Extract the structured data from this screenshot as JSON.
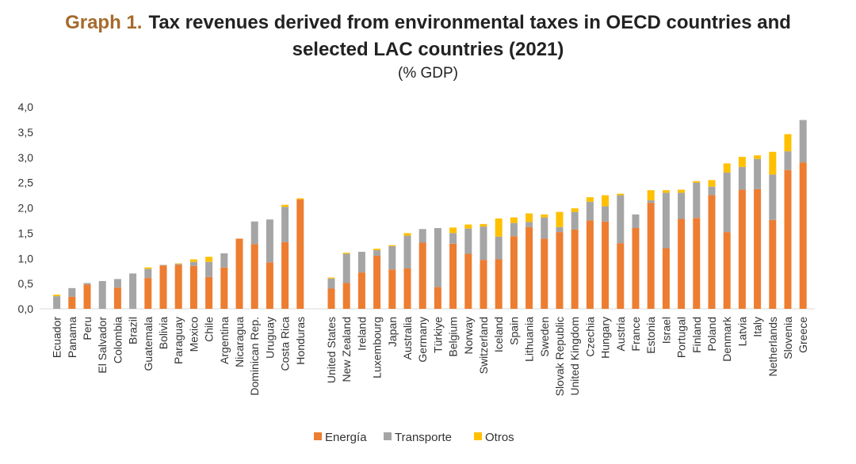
{
  "title": {
    "label": "Graph 1.",
    "line1": "Tax revenues derived from environmental taxes in OECD countries and",
    "line2": "selected LAC countries (2021)",
    "subtitle": "(% GDP)"
  },
  "chart_data": {
    "type": "bar",
    "stacked": true,
    "ylim": [
      0,
      4.0
    ],
    "yticks": [
      "0,0",
      "0,5",
      "1,0",
      "1,5",
      "2,0",
      "2,5",
      "3,0",
      "3,5",
      "4,0"
    ],
    "grid": false,
    "legend_position": "bottom",
    "colors": {
      "Energía": "#ed7d31",
      "Transporte": "#a5a5a5",
      "Otros": "#ffc000"
    },
    "groups": [
      {
        "categories": [
          "Ecuador",
          "Panama",
          "Peru",
          "El Salvador",
          "Colombia",
          "Brazil",
          "Guatemala",
          "Bolivia",
          "Paraguay",
          "Mexico",
          "Chile",
          "Argentina",
          "Nicaragua",
          "Dominican Rep.",
          "Uruguay",
          "Costa Rica",
          "Honduras"
        ],
        "series": [
          {
            "name": "Energía",
            "values": [
              0.0,
              0.24,
              0.48,
              0.0,
              0.42,
              0.0,
              0.61,
              0.86,
              0.87,
              0.85,
              0.63,
              0.82,
              1.39,
              1.28,
              0.92,
              1.32,
              2.17
            ]
          },
          {
            "name": "Transporte",
            "values": [
              0.25,
              0.17,
              0.03,
              0.55,
              0.17,
              0.7,
              0.18,
              0.01,
              0.02,
              0.08,
              0.3,
              0.28,
              0.0,
              0.45,
              0.85,
              0.7,
              0.0
            ]
          },
          {
            "name": "Otros",
            "values": [
              0.03,
              0.0,
              0.0,
              0.0,
              0.0,
              0.0,
              0.03,
              0.0,
              0.01,
              0.05,
              0.1,
              0.0,
              0.0,
              0.0,
              0.0,
              0.04,
              0.02
            ]
          }
        ]
      },
      {
        "categories": [
          "United States",
          "New Zealand",
          "Ireland",
          "Luxembourg",
          "Japan",
          "Australia",
          "Germany",
          "Türkiye",
          "Belgium",
          "Norway",
          "Switzerland",
          "Iceland",
          "Spain",
          "Lithuania",
          "Sweden",
          "Slovak Republic",
          "United Kingdom",
          "Czechia",
          "Hungary",
          "Austria",
          "France",
          "Estonia",
          "Israel",
          "Portugal",
          "Finland",
          "Poland",
          "Denmark",
          "Latvia",
          "Italy",
          "Netherlands",
          "Slovenia",
          "Greece"
        ],
        "series": [
          {
            "name": "Energía",
            "values": [
              0.4,
              0.51,
              0.72,
              1.05,
              0.78,
              0.8,
              1.31,
              0.43,
              1.29,
              1.09,
              0.97,
              0.98,
              1.44,
              1.62,
              1.39,
              1.52,
              1.57,
              1.75,
              1.73,
              1.3,
              1.6,
              2.1,
              1.2,
              1.78,
              1.8,
              2.25,
              1.52,
              2.36,
              2.37,
              1.76,
              2.75,
              2.9
            ]
          },
          {
            "name": "Transporte",
            "values": [
              0.2,
              0.58,
              0.41,
              0.11,
              0.46,
              0.65,
              0.27,
              1.17,
              0.21,
              0.5,
              0.66,
              0.45,
              0.26,
              0.1,
              0.42,
              0.1,
              0.35,
              0.37,
              0.3,
              0.95,
              0.27,
              0.05,
              1.1,
              0.52,
              0.7,
              0.17,
              1.18,
              0.45,
              0.6,
              0.9,
              0.37,
              0.84
            ]
          },
          {
            "name": "Otros",
            "values": [
              0.02,
              0.02,
              0.0,
              0.03,
              0.02,
              0.05,
              0.0,
              0.0,
              0.11,
              0.08,
              0.05,
              0.36,
              0.11,
              0.17,
              0.06,
              0.3,
              0.07,
              0.09,
              0.22,
              0.03,
              0.0,
              0.2,
              0.05,
              0.06,
              0.03,
              0.13,
              0.18,
              0.2,
              0.07,
              0.45,
              0.34,
              0.0
            ]
          }
        ]
      }
    ]
  }
}
